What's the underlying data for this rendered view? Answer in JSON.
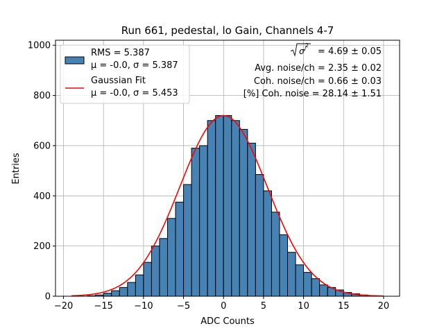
{
  "chart_data": {
    "type": "bar",
    "title": "Run 661, pedestal, lo Gain, Channels 4-7",
    "xlabel": "ADC Counts",
    "ylabel": "Entries",
    "xlim": [
      -21,
      22
    ],
    "ylim": [
      0,
      1020
    ],
    "xticks": [
      -20,
      -15,
      -10,
      -5,
      0,
      5,
      10,
      15,
      20
    ],
    "yticks": [
      0,
      200,
      400,
      600,
      800,
      1000
    ],
    "grid": true,
    "legend_placement": "upper-left",
    "bin_width": 1,
    "bins": [
      -17,
      -16,
      -15,
      -14,
      -13,
      -12,
      -11,
      -10,
      -9,
      -8,
      -7,
      -6,
      -5,
      -4,
      -3,
      -2,
      -1,
      0,
      1,
      2,
      3,
      4,
      5,
      6,
      7,
      8,
      9,
      10,
      11,
      12,
      13,
      14,
      15,
      16,
      17,
      18
    ],
    "counts": [
      2,
      5,
      12,
      22,
      35,
      55,
      85,
      135,
      200,
      230,
      310,
      375,
      445,
      590,
      600,
      700,
      720,
      720,
      700,
      665,
      610,
      485,
      420,
      335,
      245,
      175,
      125,
      95,
      70,
      45,
      35,
      25,
      15,
      10,
      5,
      2
    ],
    "series": [
      {
        "name": "RMS = 5.387",
        "name_line2": "μ = -0.0, σ = 5.387",
        "kind": "histogram",
        "color": "#4682b4",
        "edge_color": "#000000"
      },
      {
        "name": "Gaussian Fit",
        "name_line2": "μ = -0.0, σ = 5.453",
        "kind": "line",
        "color": "#ff0000",
        "mu": 0.0,
        "sigma": 5.453,
        "amplitude": 720,
        "x_range": [
          -19,
          20
        ]
      }
    ],
    "annotations": [
      "= 4.69 ± 0.05",
      "Avg. noise/ch = 2.35 ± 0.02",
      "Coh. noise/ch = 0.66 ± 0.03",
      "[%] Coh. noise = 28.14 ± 1.51"
    ]
  }
}
